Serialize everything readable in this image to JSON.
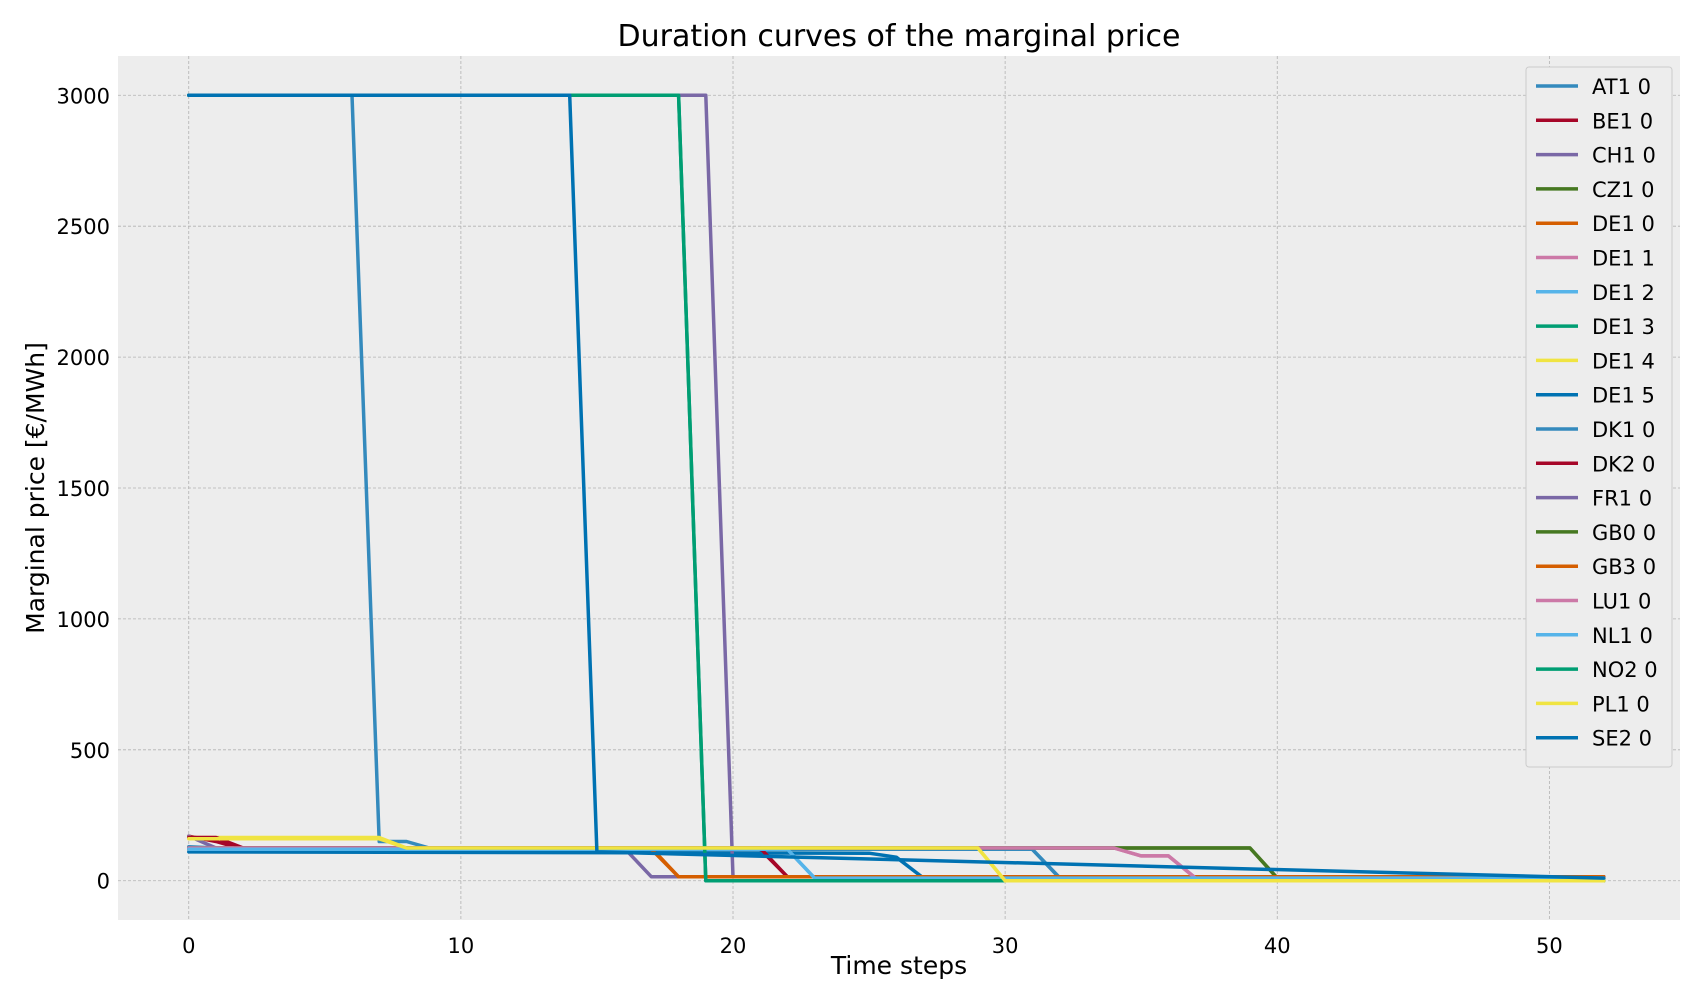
{
  "chart_data": {
    "type": "line",
    "title": "Duration curves of the marginal price",
    "xlabel": "Time steps",
    "ylabel": "Marginal price [€/MWh]",
    "xlim": [
      -2.6,
      54.8
    ],
    "ylim": [
      -150,
      3150
    ],
    "xticks": [
      0,
      10,
      20,
      30,
      40,
      50
    ],
    "yticks": [
      0,
      500,
      1000,
      1500,
      2000,
      2500,
      3000
    ],
    "grid": true,
    "legend_position": "top-right",
    "series": [
      {
        "name": "AT1 0",
        "color": "#348ABD",
        "points": [
          [
            0,
            3000
          ],
          [
            6,
            3000
          ],
          [
            7,
            150
          ],
          [
            8,
            150
          ],
          [
            9,
            120
          ],
          [
            31,
            120
          ],
          [
            32,
            10
          ],
          [
            52,
            10
          ]
        ]
      },
      {
        "name": "BE1 0",
        "color": "#A60628",
        "points": [
          [
            0,
            170
          ],
          [
            1,
            150
          ],
          [
            2,
            120
          ],
          [
            21,
            120
          ],
          [
            22,
            15
          ],
          [
            52,
            15
          ]
        ]
      },
      {
        "name": "CH1 0",
        "color": "#7A68A6",
        "points": [
          [
            0,
            170
          ],
          [
            1,
            125
          ],
          [
            16,
            125
          ],
          [
            17,
            15
          ],
          [
            52,
            15
          ]
        ]
      },
      {
        "name": "CZ1 0",
        "color": "#467821",
        "points": [
          [
            0,
            125
          ],
          [
            39,
            125
          ],
          [
            40,
            10
          ],
          [
            52,
            10
          ]
        ]
      },
      {
        "name": "DE1 0",
        "color": "#D55E00",
        "points": [
          [
            0,
            125
          ],
          [
            17,
            125
          ],
          [
            18,
            15
          ],
          [
            52,
            15
          ]
        ]
      },
      {
        "name": "DE1 1",
        "color": "#CC79A7",
        "points": [
          [
            0,
            125
          ],
          [
            34,
            125
          ],
          [
            35,
            95
          ],
          [
            36,
            95
          ],
          [
            37,
            10
          ],
          [
            52,
            10
          ]
        ]
      },
      {
        "name": "DE1 2",
        "color": "#56B4E9",
        "points": [
          [
            0,
            120
          ],
          [
            22,
            120
          ],
          [
            23,
            10
          ],
          [
            52,
            10
          ]
        ]
      },
      {
        "name": "DE1 3",
        "color": "#009E73",
        "points": [
          [
            0,
            3000
          ],
          [
            18,
            3000
          ],
          [
            19,
            0
          ],
          [
            52,
            0
          ]
        ]
      },
      {
        "name": "DE1 4",
        "color": "#F0E442",
        "points": [
          [
            0,
            165
          ],
          [
            7,
            165
          ],
          [
            8,
            125
          ],
          [
            29,
            125
          ],
          [
            30,
            0
          ],
          [
            52,
            0
          ]
        ]
      },
      {
        "name": "DE1 5",
        "color": "#0072B2",
        "points": [
          [
            0,
            110
          ],
          [
            25,
            105
          ],
          [
            26,
            90
          ],
          [
            27,
            10
          ],
          [
            52,
            10
          ]
        ]
      },
      {
        "name": "DK1 0",
        "color": "#348ABD",
        "points": [
          [
            0,
            130
          ],
          [
            2,
            120
          ],
          [
            31,
            120
          ],
          [
            32,
            12
          ],
          [
            52,
            12
          ]
        ]
      },
      {
        "name": "DK2 0",
        "color": "#A60628",
        "points": [
          [
            0,
            165
          ],
          [
            1,
            165
          ],
          [
            2,
            125
          ],
          [
            21,
            125
          ],
          [
            22,
            15
          ],
          [
            52,
            15
          ]
        ]
      },
      {
        "name": "FR1 0",
        "color": "#7A68A6",
        "points": [
          [
            0,
            3000
          ],
          [
            19,
            3000
          ],
          [
            20,
            15
          ],
          [
            52,
            15
          ]
        ]
      },
      {
        "name": "GB0 0",
        "color": "#467821",
        "points": [
          [
            0,
            125
          ],
          [
            39,
            125
          ],
          [
            40,
            10
          ],
          [
            52,
            10
          ]
        ]
      },
      {
        "name": "GB3 0",
        "color": "#D55E00",
        "points": [
          [
            0,
            120
          ],
          [
            17,
            120
          ],
          [
            18,
            15
          ],
          [
            52,
            15
          ]
        ]
      },
      {
        "name": "LU1 0",
        "color": "#CC79A7",
        "points": [
          [
            0,
            125
          ],
          [
            34,
            125
          ],
          [
            35,
            95
          ],
          [
            36,
            95
          ],
          [
            37,
            10
          ],
          [
            52,
            10
          ]
        ]
      },
      {
        "name": "NL1 0",
        "color": "#56B4E9",
        "points": [
          [
            0,
            120
          ],
          [
            22,
            120
          ],
          [
            23,
            10
          ],
          [
            52,
            10
          ]
        ]
      },
      {
        "name": "NO2 0",
        "color": "#009E73",
        "points": [
          [
            0,
            3000
          ],
          [
            18,
            3000
          ],
          [
            19,
            0
          ],
          [
            52,
            0
          ]
        ]
      },
      {
        "name": "PL1 0",
        "color": "#F0E442",
        "points": [
          [
            0,
            160
          ],
          [
            7,
            160
          ],
          [
            8,
            125
          ],
          [
            29,
            125
          ],
          [
            30,
            0
          ],
          [
            52,
            0
          ]
        ]
      },
      {
        "name": "SE2 0",
        "color": "#0072B2",
        "points": [
          [
            0,
            3000
          ],
          [
            14,
            3000
          ],
          [
            15,
            110
          ],
          [
            52,
            10
          ]
        ]
      }
    ]
  }
}
